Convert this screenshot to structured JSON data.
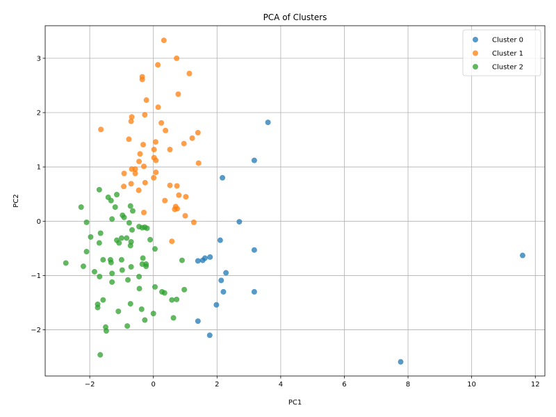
{
  "chart_data": {
    "type": "scatter",
    "title": "PCA of Clusters",
    "xlabel": "PC1",
    "ylabel": "PC2",
    "xlim": [
      -3.4,
      12.3
    ],
    "ylim": [
      -2.85,
      3.6
    ],
    "xticks": [
      -2,
      0,
      2,
      4,
      6,
      8,
      10,
      12
    ],
    "yticks": [
      -2,
      -1,
      0,
      1,
      2,
      3
    ],
    "grid": true,
    "legend_position": "top-right",
    "series": [
      {
        "name": "Cluster 0",
        "color": "#1f77b4",
        "points": [
          [
            3.6,
            1.82
          ],
          [
            3.17,
            1.12
          ],
          [
            2.17,
            0.8
          ],
          [
            2.7,
            -0.01
          ],
          [
            2.1,
            -0.35
          ],
          [
            3.17,
            -0.53
          ],
          [
            1.78,
            -0.66
          ],
          [
            1.62,
            -0.68
          ],
          [
            1.55,
            -0.72
          ],
          [
            1.4,
            -0.73
          ],
          [
            2.28,
            -0.95
          ],
          [
            2.13,
            -1.09
          ],
          [
            2.2,
            -1.3
          ],
          [
            3.17,
            -1.3
          ],
          [
            1.98,
            -1.54
          ],
          [
            1.4,
            -1.84
          ],
          [
            1.77,
            -2.1
          ],
          [
            7.77,
            -2.59
          ],
          [
            11.6,
            -0.63
          ]
        ]
      },
      {
        "name": "Cluster 1",
        "color": "#ff7f0e",
        "points": [
          [
            0.33,
            3.33
          ],
          [
            0.73,
            3.0
          ],
          [
            0.14,
            2.88
          ],
          [
            1.13,
            2.72
          ],
          [
            -0.35,
            2.66
          ],
          [
            -0.35,
            2.61
          ],
          [
            0.78,
            2.34
          ],
          [
            -0.22,
            2.23
          ],
          [
            0.15,
            2.1
          ],
          [
            -0.27,
            1.96
          ],
          [
            -0.68,
            1.92
          ],
          [
            -0.7,
            1.84
          ],
          [
            0.25,
            1.81
          ],
          [
            -1.65,
            1.69
          ],
          [
            0.38,
            1.67
          ],
          [
            1.4,
            1.63
          ],
          [
            1.22,
            1.53
          ],
          [
            -0.77,
            1.51
          ],
          [
            0.07,
            1.46
          ],
          [
            0.96,
            1.43
          ],
          [
            -0.32,
            1.41
          ],
          [
            0.02,
            1.32
          ],
          [
            0.52,
            1.32
          ],
          [
            -0.42,
            1.24
          ],
          [
            0.02,
            1.17
          ],
          [
            0.08,
            1.12
          ],
          [
            -0.45,
            1.1
          ],
          [
            1.42,
            1.07
          ],
          [
            -0.3,
            1.01
          ],
          [
            -0.68,
            0.96
          ],
          [
            -0.57,
            0.96
          ],
          [
            -0.92,
            0.88
          ],
          [
            0.08,
            0.9
          ],
          [
            -0.57,
            0.88
          ],
          [
            0.01,
            0.8
          ],
          [
            -0.26,
            0.71
          ],
          [
            -0.7,
            0.69
          ],
          [
            0.52,
            0.66
          ],
          [
            0.74,
            0.65
          ],
          [
            -0.93,
            0.64
          ],
          [
            -0.46,
            0.57
          ],
          [
            0.8,
            0.48
          ],
          [
            1.02,
            0.45
          ],
          [
            0.36,
            0.38
          ],
          [
            0.7,
            0.27
          ],
          [
            0.67,
            0.22
          ],
          [
            0.75,
            0.23
          ],
          [
            -0.3,
            0.16
          ],
          [
            1.0,
            0.1
          ],
          [
            1.27,
            -0.02
          ],
          [
            0.58,
            -0.37
          ]
        ]
      },
      {
        "name": "Cluster 2",
        "color": "#2ca02c",
        "points": [
          [
            -1.7,
            0.58
          ],
          [
            -1.15,
            0.49
          ],
          [
            -1.42,
            0.44
          ],
          [
            -2.27,
            0.26
          ],
          [
            -1.33,
            0.38
          ],
          [
            -1.2,
            0.26
          ],
          [
            -0.72,
            0.28
          ],
          [
            -0.65,
            0.19
          ],
          [
            -0.97,
            0.11
          ],
          [
            -0.92,
            0.07
          ],
          [
            -1.3,
            0.04
          ],
          [
            -0.76,
            -0.03
          ],
          [
            -2.1,
            -0.02
          ],
          [
            -0.45,
            -0.1
          ],
          [
            -0.35,
            -0.12
          ],
          [
            -0.27,
            -0.11
          ],
          [
            -0.2,
            -0.13
          ],
          [
            -0.67,
            -0.16
          ],
          [
            -1.66,
            -0.22
          ],
          [
            -1.97,
            -0.29
          ],
          [
            -1.0,
            -0.31
          ],
          [
            -0.84,
            -0.31
          ],
          [
            -0.1,
            -0.34
          ],
          [
            -1.15,
            -0.35
          ],
          [
            -0.7,
            -0.38
          ],
          [
            -1.7,
            -0.4
          ],
          [
            -1.08,
            -0.4
          ],
          [
            -0.72,
            -0.45
          ],
          [
            0.05,
            -0.51
          ],
          [
            -2.1,
            -0.56
          ],
          [
            -1.35,
            -0.71
          ],
          [
            -1.58,
            -0.71
          ],
          [
            -1.0,
            -0.71
          ],
          [
            -0.33,
            -0.68
          ],
          [
            0.9,
            -0.72
          ],
          [
            -1.33,
            -0.76
          ],
          [
            -2.75,
            -0.77
          ],
          [
            -0.35,
            -0.79
          ],
          [
            -0.23,
            -0.79
          ],
          [
            -0.23,
            -0.83
          ],
          [
            -2.2,
            -0.83
          ],
          [
            -0.7,
            -0.84
          ],
          [
            -0.98,
            -0.9
          ],
          [
            -1.85,
            -0.93
          ],
          [
            -1.3,
            -0.96
          ],
          [
            -1.69,
            -1.02
          ],
          [
            -0.45,
            -1.02
          ],
          [
            -0.8,
            -1.08
          ],
          [
            -1.3,
            -1.12
          ],
          [
            0.05,
            -1.21
          ],
          [
            -0.44,
            -1.24
          ],
          [
            0.97,
            -1.26
          ],
          [
            0.27,
            -1.3
          ],
          [
            0.35,
            -1.32
          ],
          [
            -1.58,
            -1.45
          ],
          [
            0.58,
            -1.45
          ],
          [
            0.73,
            -1.44
          ],
          [
            -0.72,
            -1.52
          ],
          [
            -1.75,
            -1.53
          ],
          [
            -1.75,
            -1.59
          ],
          [
            -0.37,
            -1.62
          ],
          [
            -1.1,
            -1.66
          ],
          [
            0.0,
            -1.7
          ],
          [
            0.63,
            -1.78
          ],
          [
            -0.27,
            -1.82
          ],
          [
            -1.5,
            -1.95
          ],
          [
            -1.48,
            -2.02
          ],
          [
            -0.82,
            -1.93
          ],
          [
            -1.67,
            -2.46
          ]
        ]
      }
    ]
  }
}
